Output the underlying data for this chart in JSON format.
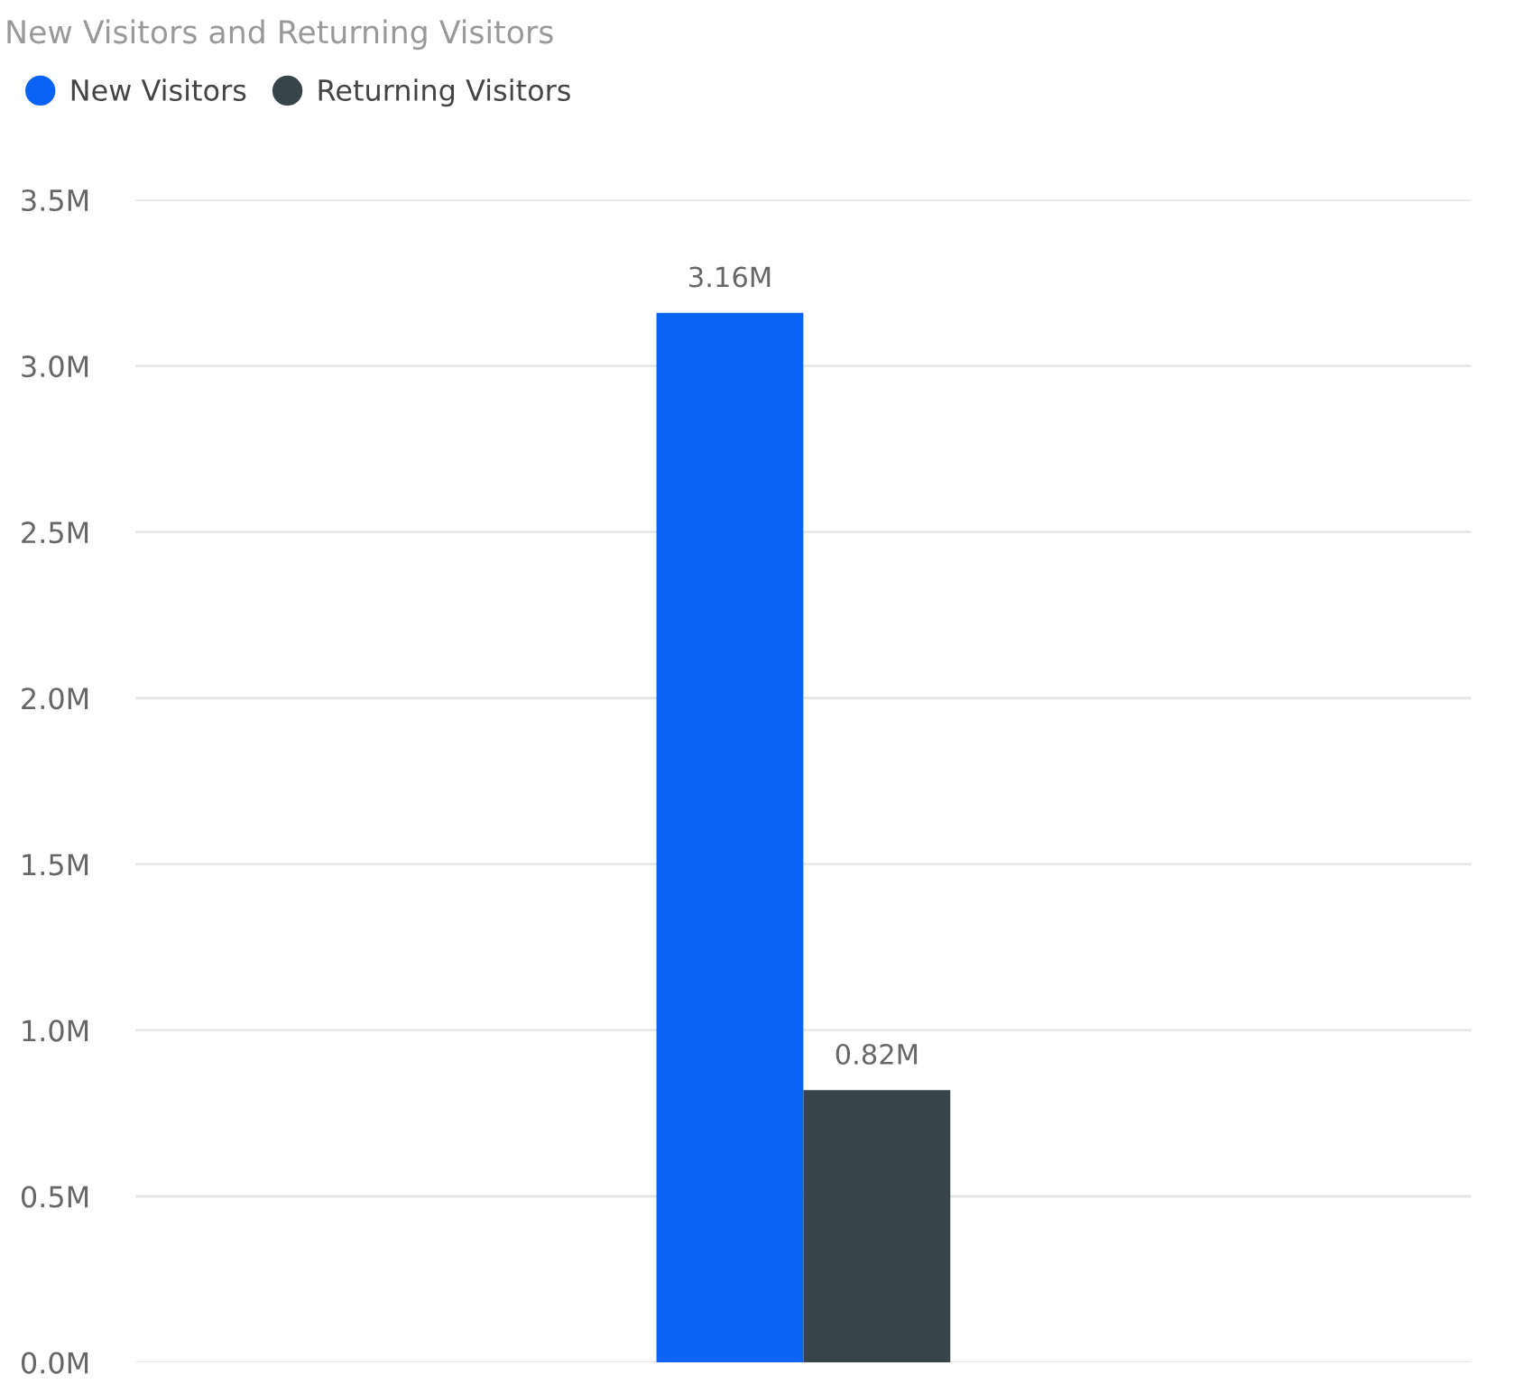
{
  "chart_data": {
    "type": "bar",
    "title": "New Visitors and Returning Visitors",
    "categories": [
      null
    ],
    "series": [
      {
        "name": "New Visitors",
        "color": "#0a63f5",
        "values": [
          3.16
        ],
        "value_labels": [
          "3.16M"
        ]
      },
      {
        "name": "Returning Visitors",
        "color": "#374449",
        "values": [
          0.82
        ],
        "value_labels": [
          "0.82M"
        ]
      }
    ],
    "ylim": [
      0,
      3.5
    ],
    "yticks": [
      {
        "value": 0,
        "label": "0.0M"
      },
      {
        "value": 0.5,
        "label": "0.5M"
      },
      {
        "value": 1,
        "label": "1.0M"
      },
      {
        "value": 1.5,
        "label": "1.5M"
      },
      {
        "value": 2,
        "label": "2.0M"
      },
      {
        "value": 2.5,
        "label": "2.5M"
      },
      {
        "value": 3,
        "label": "3.0M"
      },
      {
        "value": 3.5,
        "label": "3.5M"
      }
    ],
    "grid": "y",
    "legend": "top left"
  }
}
